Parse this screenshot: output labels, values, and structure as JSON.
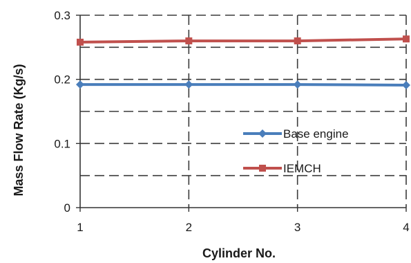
{
  "chart_data": {
    "type": "line",
    "xlabel": "Cylinder No.",
    "ylabel": "Mass Flow Rate (Kg/s)",
    "x": [
      1,
      2,
      3,
      4
    ],
    "x_tick_labels": [
      "1",
      "2",
      "3",
      "4"
    ],
    "ylim": [
      0,
      0.3
    ],
    "y_ticks": [
      0,
      0.1,
      0.2,
      0.3
    ],
    "y_tick_labels": [
      "0",
      "0.1",
      "0.2",
      "0.3"
    ],
    "grid": "dashed major and minor horizontal, dashed vertical",
    "legend_position": "right-middle",
    "series": [
      {
        "name": "Base engine",
        "values": [
          0.192,
          0.192,
          0.192,
          0.191
        ],
        "color": "#4a7ebb",
        "marker": "diamond"
      },
      {
        "name": "IEMCH",
        "values": [
          0.258,
          0.26,
          0.26,
          0.263
        ],
        "color": "#c0504d",
        "marker": "square"
      }
    ]
  }
}
